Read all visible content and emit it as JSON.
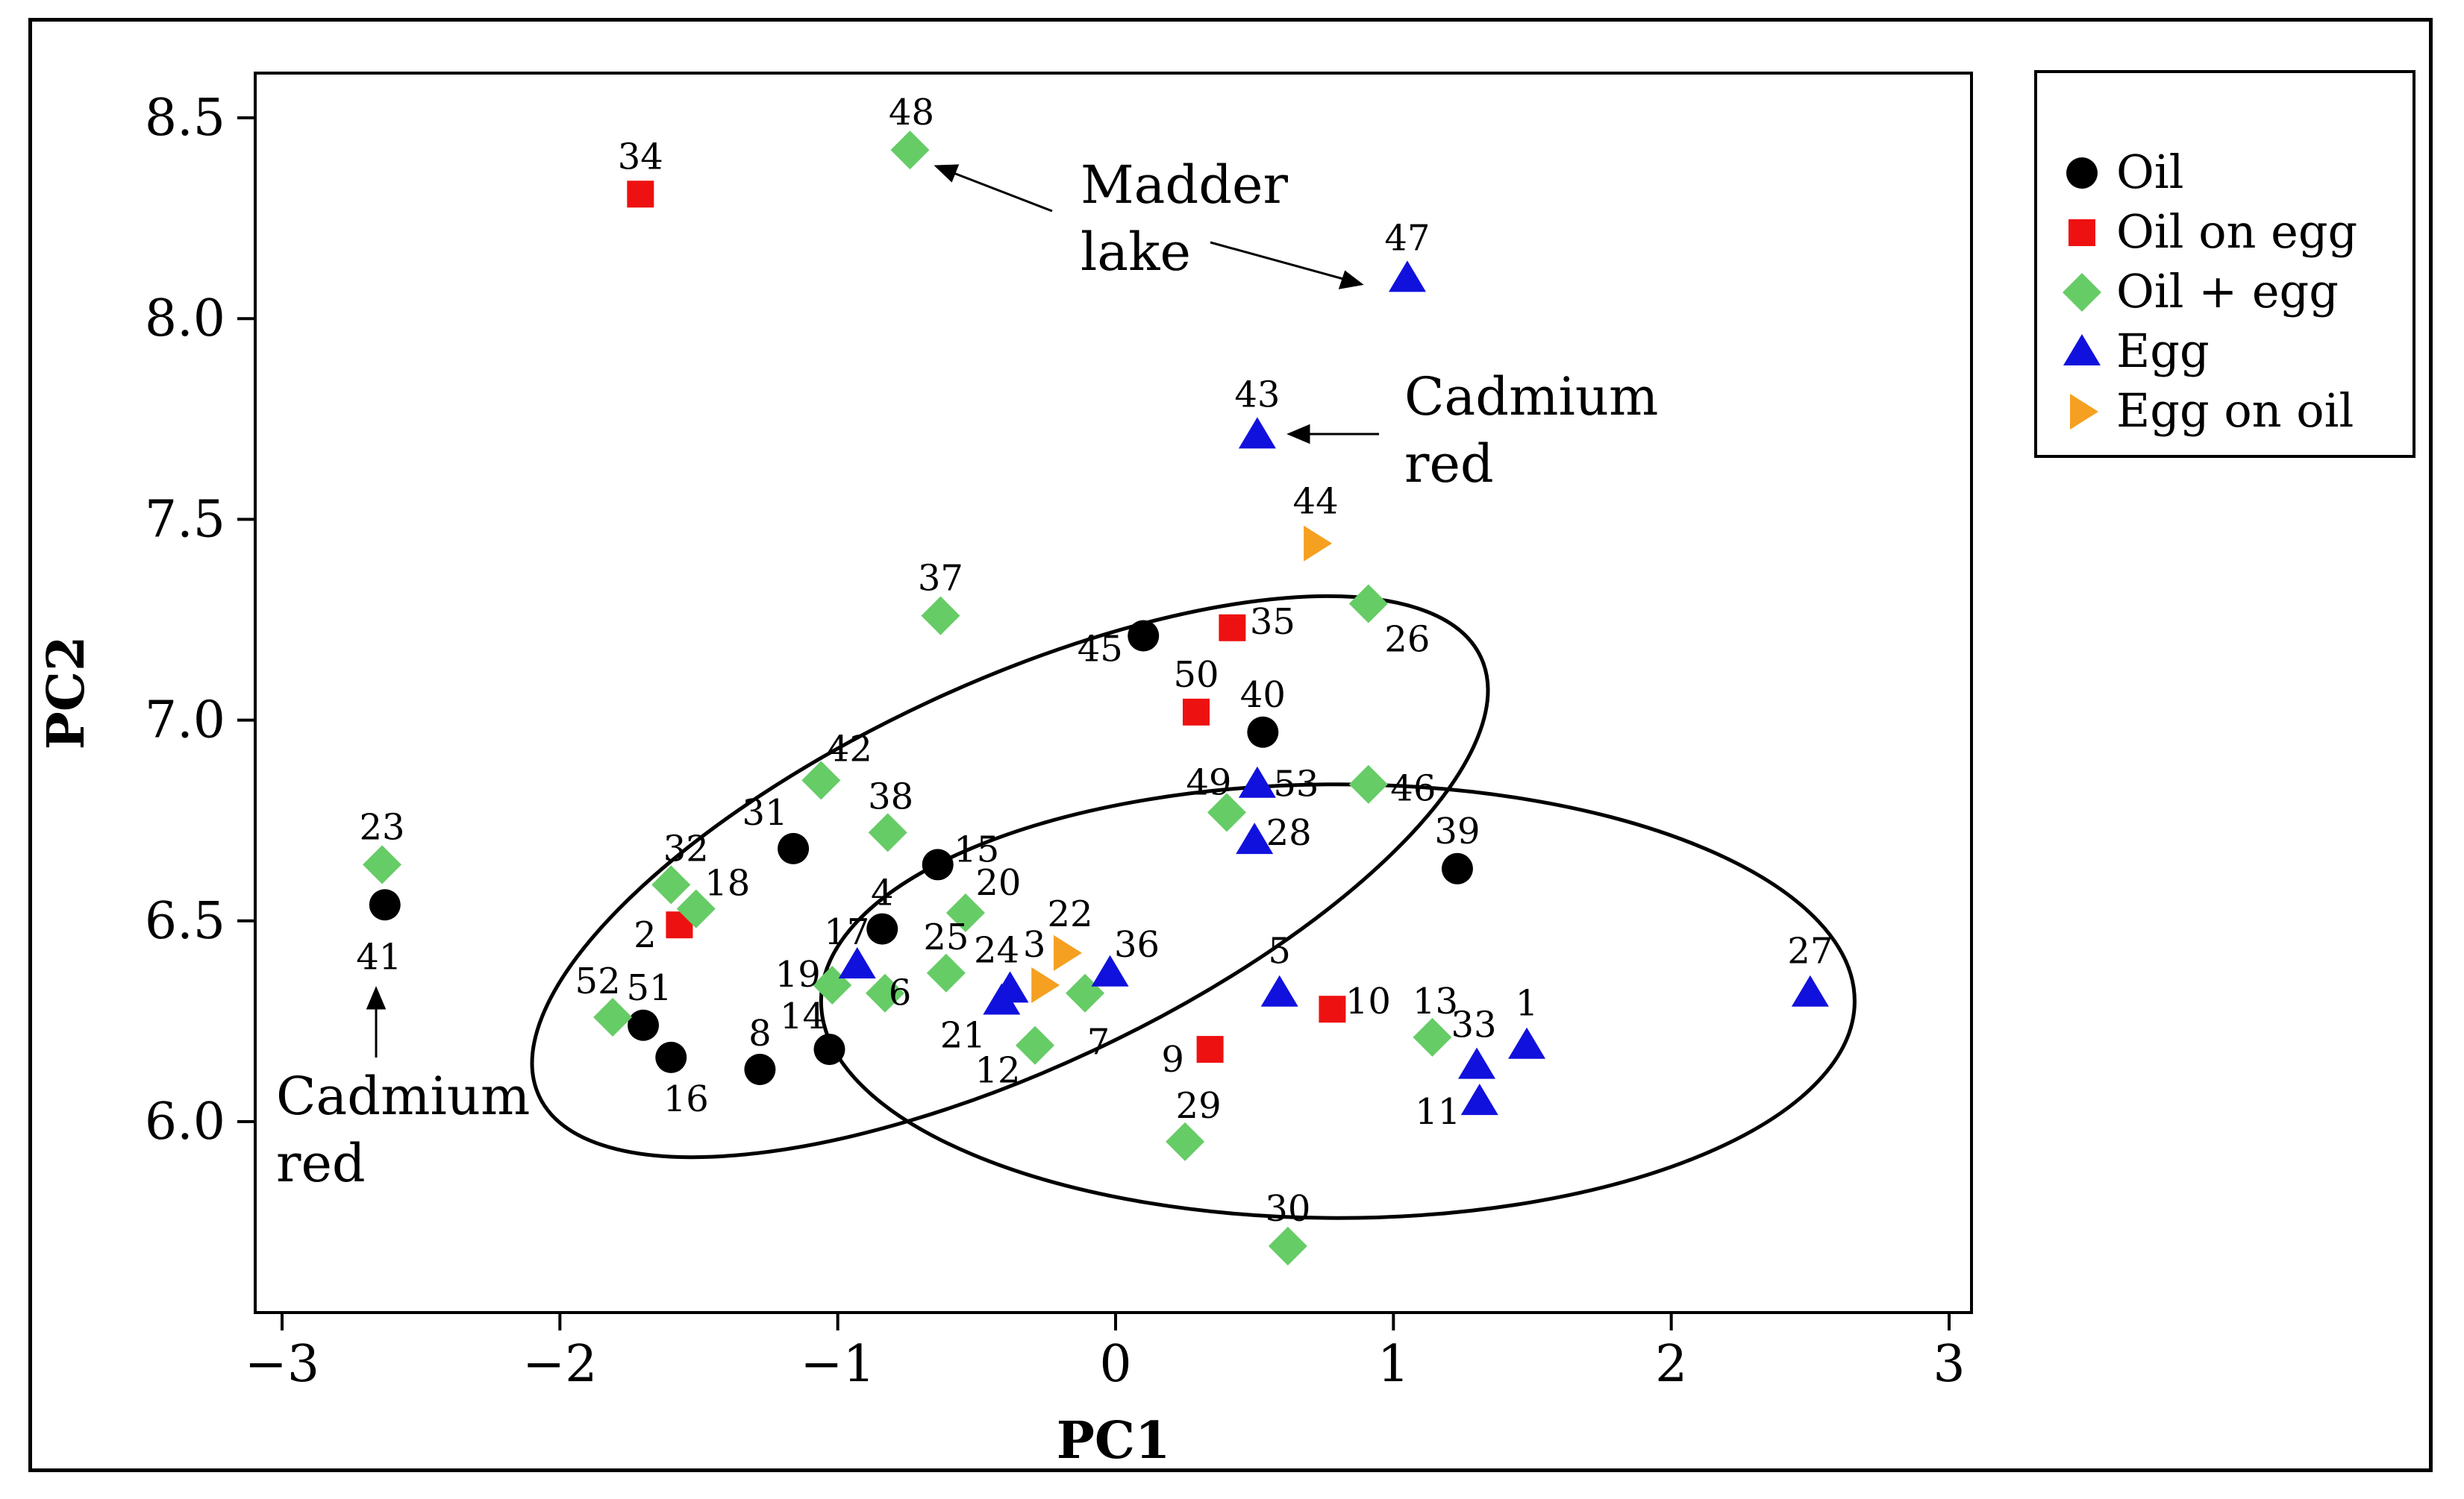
{
  "chart_data": {
    "type": "scatter",
    "xlabel": "PC1",
    "ylabel": "PC2",
    "xlim": [
      -3.1,
      3.0
    ],
    "ylim": [
      5.5,
      8.62
    ],
    "xticks": [
      "−3",
      "−2",
      "−1",
      "0",
      "1",
      "2",
      "3"
    ],
    "xtick_values": [
      -3,
      -2,
      -1,
      0,
      1,
      2,
      3
    ],
    "yticks": [
      "6.0",
      "6.5",
      "7.0",
      "7.5",
      "8.0",
      "8.5"
    ],
    "ytick_values": [
      6.0,
      6.5,
      7.0,
      7.5,
      8.0,
      8.5
    ],
    "legend_position": "outside-right-top",
    "series": [
      {
        "name": "Oil",
        "marker": "circle",
        "color": "#000000",
        "points": [
          {
            "id": "45",
            "x": 0.1,
            "y": 7.21
          },
          {
            "id": "40",
            "x": 0.53,
            "y": 6.97
          },
          {
            "id": "39",
            "x": 1.23,
            "y": 6.63
          },
          {
            "id": "31",
            "x": -1.16,
            "y": 6.68
          },
          {
            "id": "15",
            "x": -0.64,
            "y": 6.64
          },
          {
            "id": "4",
            "x": -0.84,
            "y": 6.48
          },
          {
            "id": "41",
            "x": -2.63,
            "y": 6.54
          },
          {
            "id": "51",
            "x": -1.7,
            "y": 6.24
          },
          {
            "id": "16",
            "x": -1.6,
            "y": 6.16
          },
          {
            "id": "8",
            "x": -1.28,
            "y": 6.13
          },
          {
            "id": "14",
            "x": -1.03,
            "y": 6.18
          }
        ]
      },
      {
        "name": "Oil on egg",
        "marker": "square",
        "color": "#ee1111",
        "points": [
          {
            "id": "34",
            "x": -1.71,
            "y": 8.31
          },
          {
            "id": "35",
            "x": 0.42,
            "y": 7.23
          },
          {
            "id": "50",
            "x": 0.29,
            "y": 7.02
          },
          {
            "id": "2",
            "x": -1.57,
            "y": 6.49
          },
          {
            "id": "10",
            "x": 0.78,
            "y": 6.28
          },
          {
            "id": "9",
            "x": 0.34,
            "y": 6.18
          }
        ]
      },
      {
        "name": "Oil + egg",
        "marker": "diamond",
        "color": "#66cc66",
        "points": [
          {
            "id": "48",
            "x": -0.74,
            "y": 8.42
          },
          {
            "id": "37",
            "x": -0.63,
            "y": 7.26
          },
          {
            "id": "26",
            "x": 0.91,
            "y": 7.29
          },
          {
            "id": "42",
            "x": -1.06,
            "y": 6.85
          },
          {
            "id": "38",
            "x": -0.82,
            "y": 6.72
          },
          {
            "id": "46",
            "x": 0.91,
            "y": 6.84
          },
          {
            "id": "49",
            "x": 0.4,
            "y": 6.77
          },
          {
            "id": "23",
            "x": -2.64,
            "y": 6.64
          },
          {
            "id": "32",
            "x": -1.6,
            "y": 6.59
          },
          {
            "id": "18",
            "x": -1.51,
            "y": 6.53
          },
          {
            "id": "20",
            "x": -0.54,
            "y": 6.52
          },
          {
            "id": "52",
            "x": -1.81,
            "y": 6.26
          },
          {
            "id": "19",
            "x": -1.02,
            "y": 6.34
          },
          {
            "id": "6",
            "x": -0.83,
            "y": 6.32
          },
          {
            "id": "25",
            "x": -0.61,
            "y": 6.37
          },
          {
            "id": "7",
            "x": -0.11,
            "y": 6.32
          },
          {
            "id": "12",
            "x": -0.29,
            "y": 6.19
          },
          {
            "id": "13",
            "x": 1.14,
            "y": 6.21
          },
          {
            "id": "29",
            "x": 0.25,
            "y": 5.95
          },
          {
            "id": "30",
            "x": 0.62,
            "y": 5.69
          }
        ]
      },
      {
        "name": "Egg",
        "marker": "triangle-up",
        "color": "#1111dd",
        "points": [
          {
            "id": "47",
            "x": 1.05,
            "y": 8.1
          },
          {
            "id": "43",
            "x": 0.51,
            "y": 7.71
          },
          {
            "id": "53",
            "x": 0.51,
            "y": 6.84
          },
          {
            "id": "28",
            "x": 0.5,
            "y": 6.7
          },
          {
            "id": "17",
            "x": -0.93,
            "y": 6.39
          },
          {
            "id": "24",
            "x": -0.38,
            "y": 6.33
          },
          {
            "id": "21",
            "x": -0.41,
            "y": 6.3
          },
          {
            "id": "36",
            "x": -0.02,
            "y": 6.37
          },
          {
            "id": "5",
            "x": 0.59,
            "y": 6.32
          },
          {
            "id": "27",
            "x": 2.5,
            "y": 6.32
          },
          {
            "id": "1",
            "x": 1.48,
            "y": 6.19
          },
          {
            "id": "33",
            "x": 1.3,
            "y": 6.14
          },
          {
            "id": "11",
            "x": 1.31,
            "y": 6.05
          }
        ]
      },
      {
        "name": "Egg on oil",
        "marker": "triangle-right",
        "color": "#f5a020",
        "points": [
          {
            "id": "44",
            "x": 0.72,
            "y": 7.44
          },
          {
            "id": "22",
            "x": -0.18,
            "y": 6.42
          },
          {
            "id": "3",
            "x": -0.26,
            "y": 6.34
          }
        ]
      }
    ],
    "ellipses": [
      {
        "name": "upper-left-ellipse",
        "cx": -0.38,
        "cy": 6.61,
        "rx": 1.87,
        "ry": 0.48,
        "rotation_deg": -25
      },
      {
        "name": "lower-right-ellipse",
        "cx": 0.8,
        "cy": 6.3,
        "rx": 1.86,
        "ry": 0.54,
        "rotation_deg": 0
      }
    ],
    "annotations": [
      {
        "text": [
          "Madder",
          "lake"
        ]
      },
      {
        "text": [
          "Cadmium",
          "red"
        ]
      },
      {
        "text": [
          "Cadmium",
          "red"
        ]
      }
    ]
  }
}
